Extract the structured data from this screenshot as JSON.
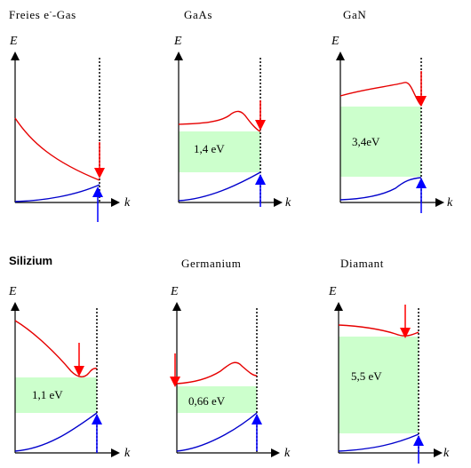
{
  "axis": {
    "energy_label": "E",
    "momentum_label": "k"
  },
  "colors": {
    "conduction_band": "#e60000",
    "valence_band": "#0000cc",
    "band_gap_fill": "#ccffcc",
    "electron_arrow": "#ff0000",
    "hole_arrow": "#0000ff",
    "axis": "#000000"
  },
  "panels": [
    {
      "id": "free-electron-gas",
      "title": "Freies e",
      "title_sup": "-",
      "title_suffix": "-Gas",
      "gap_label": ""
    },
    {
      "id": "gaas",
      "title": "GaAs",
      "title_sup": "",
      "title_suffix": "",
      "gap_label": "1,4 eV"
    },
    {
      "id": "gan",
      "title": "GaN",
      "title_sup": "",
      "title_suffix": "",
      "gap_label": "3,4eV"
    },
    {
      "id": "silizium",
      "title": "Silizium",
      "title_sup": "",
      "title_suffix": "",
      "gap_label": "1,1 eV"
    },
    {
      "id": "germanium",
      "title": "Germanium",
      "title_sup": "",
      "title_suffix": "",
      "gap_label": "0,66 eV"
    },
    {
      "id": "diamant",
      "title": "Diamant",
      "title_sup": "",
      "title_suffix": "",
      "gap_label": "5,5 eV"
    }
  ]
}
